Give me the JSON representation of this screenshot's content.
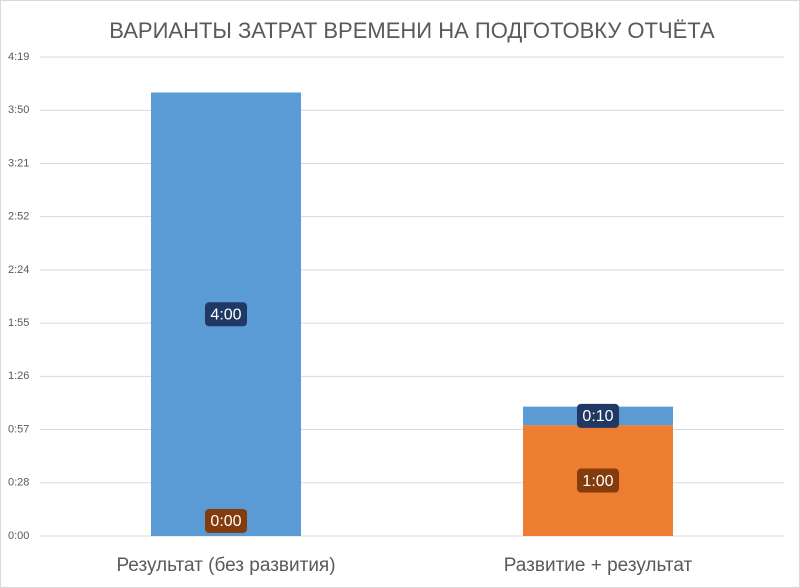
{
  "chart_data": {
    "type": "stacked-bar",
    "title": "ВАРИАНТЫ ЗАТРАТ ВРЕМЕНИ НА ПОДГОТОВКУ ОТЧЁТА",
    "categories": [
      "Результат (без развития)",
      "Развитие + результат"
    ],
    "series": [
      {
        "color": "#ed7d31",
        "label_color": "#843c0c",
        "values": [
          0,
          60
        ],
        "value_labels": [
          "0:00",
          "1:00"
        ]
      },
      {
        "color": "#5b9bd5",
        "label_color": "#203864",
        "values": [
          240,
          10
        ],
        "value_labels": [
          "4:00",
          "0:10"
        ]
      }
    ],
    "ylim": [
      0,
      259.2
    ],
    "yticks": [
      {
        "value": 0,
        "label": "0:00"
      },
      {
        "value": 28.8,
        "label": "0:28"
      },
      {
        "value": 57.6,
        "label": "0:57"
      },
      {
        "value": 86.4,
        "label": "1:26"
      },
      {
        "value": 115.2,
        "label": "1:55"
      },
      {
        "value": 144,
        "label": "2:24"
      },
      {
        "value": 172.8,
        "label": "2:52"
      },
      {
        "value": 201.6,
        "label": "3:21"
      },
      {
        "value": 230.4,
        "label": "3:50"
      },
      {
        "value": 259.2,
        "label": "4:19"
      }
    ],
    "grid": true
  }
}
